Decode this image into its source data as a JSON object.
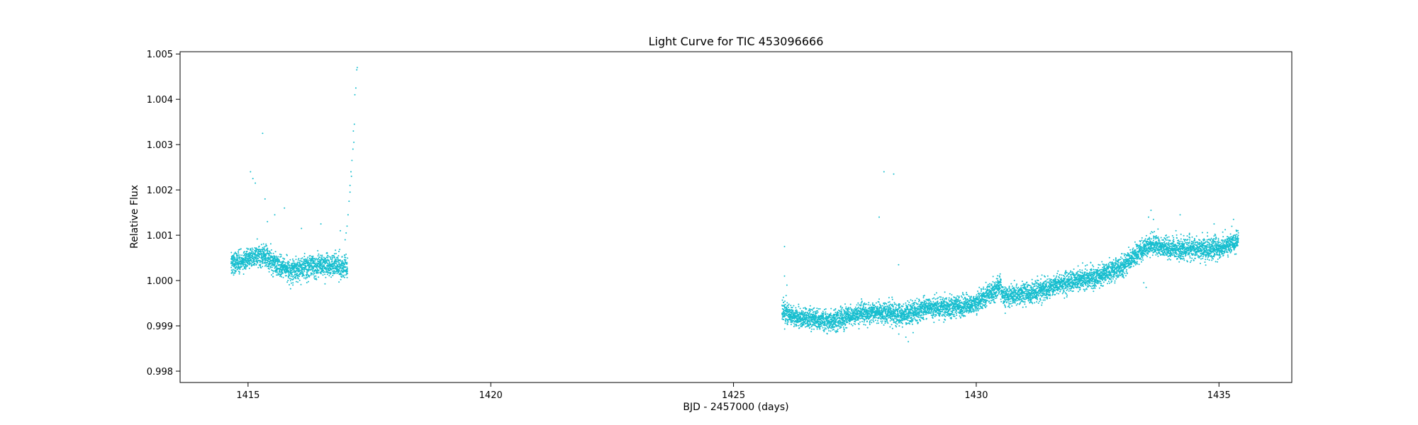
{
  "chart_data": {
    "type": "scatter",
    "title": "Light Curve for TIC 453096666",
    "xlabel": "BJD - 2457000 (days)",
    "ylabel": "Relative Flux",
    "xlim": [
      1413.6,
      1436.5
    ],
    "ylim": [
      0.99775,
      1.00505
    ],
    "xticks": [
      1415,
      1420,
      1425,
      1430,
      1435
    ],
    "xtick_labels": [
      "1415",
      "1420",
      "1425",
      "1430",
      "1435"
    ],
    "yticks": [
      0.998,
      0.999,
      1.0,
      1.001,
      1.002,
      1.003,
      1.004,
      1.005
    ],
    "ytick_labels": [
      "0.998",
      "0.999",
      "1.000",
      "1.001",
      "1.002",
      "1.003",
      "1.004",
      "1.005"
    ],
    "grid": false,
    "legend": "none",
    "series": [
      {
        "color": "#17becf",
        "marker_size": 1,
        "segments": [
          {
            "x_range": [
              1414.65,
              1417.05
            ],
            "trend": [
              [
                1414.65,
                1.00035
              ],
              [
                1415.0,
                1.0005
              ],
              [
                1415.3,
                1.00055
              ],
              [
                1415.6,
                1.00035
              ],
              [
                1415.9,
                1.0002
              ],
              [
                1416.2,
                1.0003
              ],
              [
                1416.6,
                1.00035
              ],
              [
                1417.05,
                1.0003
              ]
            ],
            "scatter": 0.00017
          },
          {
            "x_range": [
              1426.0,
              1435.4
            ],
            "trend": [
              [
                1426.0,
                0.99935
              ],
              [
                1426.2,
                0.9992
              ],
              [
                1426.6,
                0.99915
              ],
              [
                1427.0,
                0.9991
              ],
              [
                1427.5,
                0.99925
              ],
              [
                1428.0,
                0.9993
              ],
              [
                1428.5,
                0.99925
              ],
              [
                1429.0,
                0.9994
              ],
              [
                1429.5,
                0.9994
              ],
              [
                1430.0,
                0.9995
              ],
              [
                1430.5,
                0.9999
              ],
              [
                1430.55,
                0.99965
              ],
              [
                1431.0,
                0.9997
              ],
              [
                1431.5,
                0.99985
              ],
              [
                1432.0,
                1.0
              ],
              [
                1432.5,
                1.0001
              ],
              [
                1433.0,
                1.0003
              ],
              [
                1433.4,
                1.00065
              ],
              [
                1433.6,
                1.0008
              ],
              [
                1434.0,
                1.0007
              ],
              [
                1434.5,
                1.0007
              ],
              [
                1435.0,
                1.0007
              ],
              [
                1435.4,
                1.0009
              ]
            ],
            "scatter": 0.00016
          }
        ],
        "extra_points": [
          [
            1415.05,
            1.0024
          ],
          [
            1415.1,
            1.00225
          ],
          [
            1415.15,
            1.00215
          ],
          [
            1415.3,
            1.00325
          ],
          [
            1415.35,
            1.0018
          ],
          [
            1415.4,
            1.0013
          ],
          [
            1415.55,
            1.00145
          ],
          [
            1415.75,
            1.0016
          ],
          [
            1416.1,
            1.00115
          ],
          [
            1416.5,
            1.00125
          ],
          [
            1416.9,
            1.0011
          ],
          [
            1417.0,
            1.0009
          ],
          [
            1417.02,
            1.00105
          ],
          [
            1417.04,
            1.0012
          ],
          [
            1417.06,
            1.00145
          ],
          [
            1417.08,
            1.00175
          ],
          [
            1417.1,
            1.0021
          ],
          [
            1417.12,
            1.0024
          ],
          [
            1417.14,
            1.00265
          ],
          [
            1417.16,
            1.0029
          ],
          [
            1417.17,
            1.0033
          ],
          [
            1417.19,
            1.00345
          ],
          [
            1417.2,
            1.0041
          ],
          [
            1417.22,
            1.00425
          ],
          [
            1417.24,
            1.00465
          ],
          [
            1417.25,
            1.0047
          ],
          [
            1417.1,
            1.00195
          ],
          [
            1417.13,
            1.0023
          ],
          [
            1417.18,
            1.00305
          ],
          [
            1426.05,
            1.00075
          ],
          [
            1426.05,
            1.0001
          ],
          [
            1426.1,
            0.9999
          ],
          [
            1428.0,
            1.0014
          ],
          [
            1428.1,
            1.0024
          ],
          [
            1428.3,
            1.00235
          ],
          [
            1428.4,
            1.00035
          ],
          [
            1428.55,
            0.99875
          ],
          [
            1428.6,
            0.99865
          ],
          [
            1428.7,
            0.99885
          ],
          [
            1433.45,
            0.99995
          ],
          [
            1433.5,
            0.99985
          ],
          [
            1433.55,
            1.0014
          ],
          [
            1433.6,
            1.00155
          ],
          [
            1433.65,
            1.00135
          ],
          [
            1434.2,
            1.00145
          ],
          [
            1434.9,
            1.00125
          ],
          [
            1435.3,
            1.00135
          ]
        ]
      }
    ]
  }
}
